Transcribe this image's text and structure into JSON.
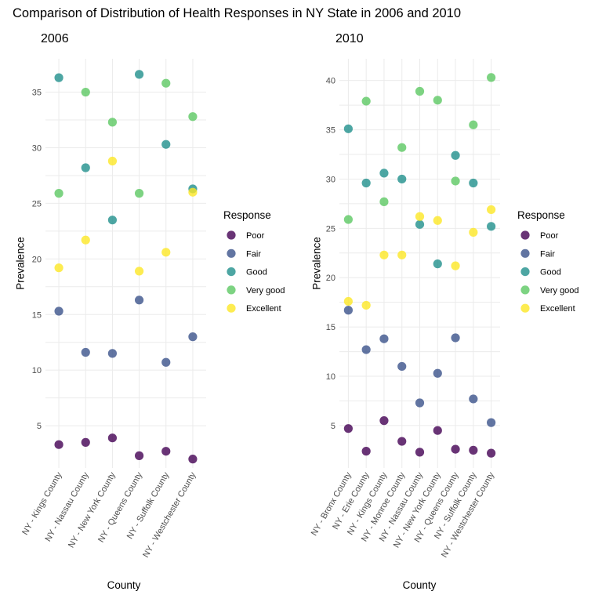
{
  "title": "Comparison of Distribution of Health Responses in NY State in 2006 and 2010",
  "colors": {
    "Poor": "#440154",
    "Fair": "#3b528b",
    "Good": "#21908c",
    "Very good": "#5dc863",
    "Excellent": "#fde725"
  },
  "chart_data": [
    {
      "type": "scatter",
      "title": "2006",
      "xlabel": "County",
      "ylabel": "Prevalence",
      "categories": [
        "NY - Kings County",
        "NY - Nassau County",
        "NY - New York County",
        "NY - Queens County",
        "NY - Suffolk County",
        "NY - Westchester County"
      ],
      "yticks": [
        5,
        10,
        15,
        20,
        25,
        30,
        35
      ],
      "ylim": [
        1.2,
        38
      ],
      "grid": true,
      "legend": {
        "title": "Response",
        "position": "right",
        "entries": [
          "Poor",
          "Fair",
          "Good",
          "Very good",
          "Excellent"
        ]
      },
      "series": [
        {
          "name": "Poor",
          "values": [
            3.3,
            3.5,
            3.9,
            2.3,
            2.7,
            2.0
          ]
        },
        {
          "name": "Fair",
          "values": [
            15.3,
            11.6,
            11.5,
            16.3,
            10.7,
            13.0
          ]
        },
        {
          "name": "Good",
          "values": [
            36.3,
            28.2,
            23.5,
            36.6,
            30.3,
            26.3
          ]
        },
        {
          "name": "Very good",
          "values": [
            25.9,
            35.0,
            32.3,
            25.9,
            35.8,
            32.8
          ]
        },
        {
          "name": "Excellent",
          "values": [
            19.2,
            21.7,
            28.8,
            18.9,
            20.6,
            26.0
          ]
        }
      ]
    },
    {
      "type": "scatter",
      "title": "2010",
      "xlabel": "County",
      "ylabel": "Prevalence",
      "categories": [
        "NY - Bronx County",
        "NY - Erie County",
        "NY - Kings County",
        "NY - Monroe County",
        "NY - Nassau County",
        "NY - New York County",
        "NY - Queens County",
        "NY - Suffolk County",
        "NY - Westchester County"
      ],
      "yticks": [
        5,
        10,
        15,
        20,
        25,
        30,
        35,
        40
      ],
      "ylim": [
        0.7,
        42.2
      ],
      "grid": true,
      "legend": {
        "title": "Response",
        "position": "right",
        "entries": [
          "Poor",
          "Fair",
          "Good",
          "Very good",
          "Excellent"
        ]
      },
      "series": [
        {
          "name": "Poor",
          "values": [
            4.7,
            2.4,
            5.5,
            3.4,
            2.3,
            4.5,
            2.6,
            2.5,
            2.2
          ]
        },
        {
          "name": "Fair",
          "values": [
            16.7,
            12.7,
            13.8,
            11.0,
            7.3,
            10.3,
            13.9,
            7.7,
            5.3
          ]
        },
        {
          "name": "Good",
          "values": [
            35.1,
            29.6,
            30.6,
            30.0,
            25.4,
            21.4,
            32.4,
            29.6,
            25.2
          ]
        },
        {
          "name": "Very good",
          "values": [
            25.9,
            37.9,
            27.7,
            33.2,
            38.9,
            38.0,
            29.8,
            35.5,
            40.3
          ]
        },
        {
          "name": "Excellent",
          "values": [
            17.6,
            17.2,
            22.3,
            22.3,
            26.2,
            25.8,
            21.2,
            24.6,
            26.9
          ]
        }
      ]
    }
  ]
}
